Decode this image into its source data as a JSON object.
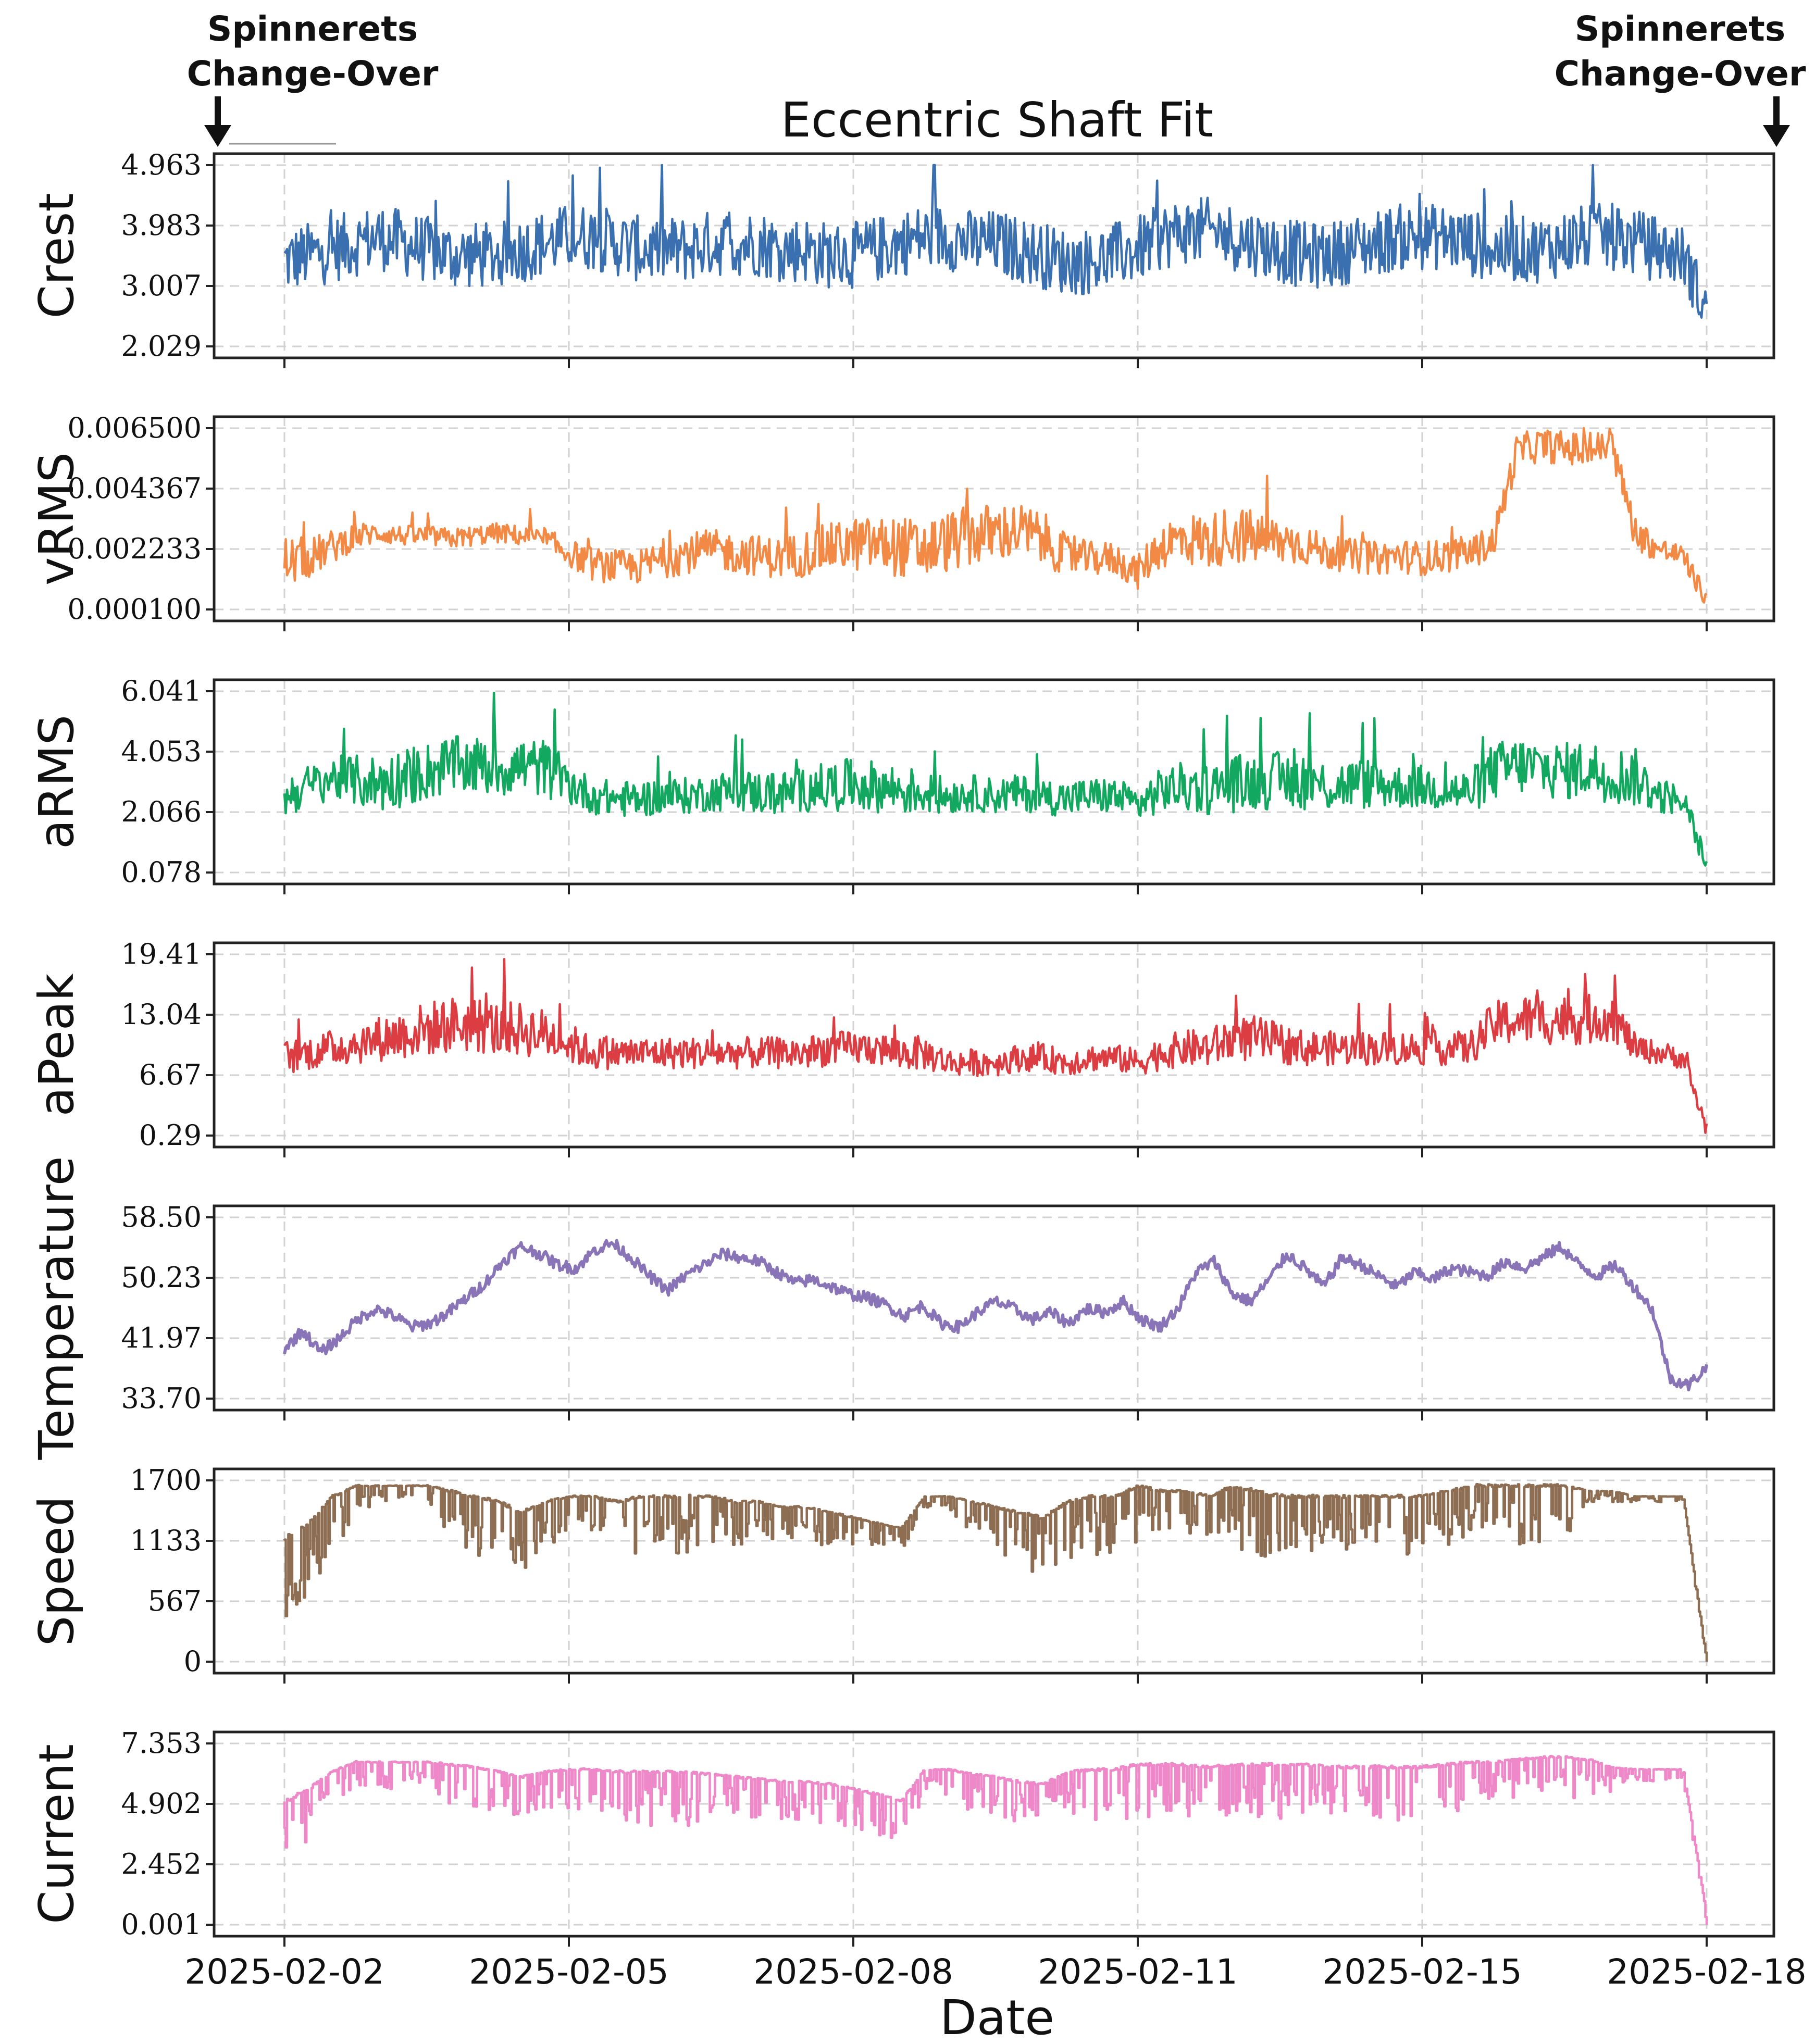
{
  "annotations": {
    "left": {
      "line1": "Spinnerets",
      "line2": "Change-Over"
    },
    "right": {
      "line1": "Spinnerets",
      "line2": "Change-Over"
    }
  },
  "chart_data": {
    "type": "line",
    "title": "Eccentric Shaft Fit",
    "xlabel": "Date",
    "x_ticks": [
      "2025-02-02",
      "2025-02-05",
      "2025-02-08",
      "2025-02-11",
      "2025-02-15",
      "2025-02-18"
    ],
    "grid": true,
    "panels": [
      {
        "name": "Crest",
        "ylabel": "Crest",
        "color": "#3a6fb0",
        "yticks": [
          "4.963",
          "3.983",
          "3.007",
          "2.029"
        ],
        "ylim": [
          2.029,
          4.963
        ],
        "values": [
          3.4,
          3.5,
          3.6,
          3.7,
          3.8,
          3.7,
          3.6,
          3.5,
          3.5,
          3.5,
          3.6,
          3.7,
          3.8,
          3.8,
          3.7,
          3.6,
          3.6,
          3.6,
          3.7,
          3.7,
          3.7,
          3.6,
          3.6,
          3.5,
          3.5,
          3.6,
          3.7,
          3.8,
          3.8,
          3.7,
          3.7,
          3.6,
          3.5,
          3.4,
          3.4,
          3.5,
          3.6,
          3.8,
          3.9,
          3.9,
          3.8,
          3.7,
          3.6,
          3.5,
          3.5,
          3.6,
          3.7,
          3.8,
          3.8,
          3.8,
          3.7,
          3.6,
          3.6,
          3.6,
          3.7,
          3.8,
          3.8,
          3.7,
          3.6,
          3.5,
          2.6
        ],
        "band": [
          0.45,
          0.45,
          0.45,
          0.45,
          0.45,
          0.45,
          0.45,
          0.45,
          0.45,
          0.45,
          0.45,
          0.45,
          0.45,
          0.45,
          0.45,
          0.45,
          0.45,
          0.45,
          0.45,
          0.45,
          0.45,
          0.45,
          0.45,
          0.45,
          0.45,
          0.45,
          0.45,
          0.45,
          0.45,
          0.45,
          0.45,
          0.45,
          0.45,
          0.45,
          0.45,
          0.45,
          0.45,
          0.45,
          0.45,
          0.45,
          0.45,
          0.45,
          0.45,
          0.45,
          0.45,
          0.45,
          0.45,
          0.45,
          0.45,
          0.45,
          0.45,
          0.45,
          0.45,
          0.45,
          0.45,
          0.45,
          0.45,
          0.45,
          0.45,
          0.4,
          0.4
        ]
      },
      {
        "name": "vRMS",
        "ylabel": "vRMS",
        "color": "#f28a45",
        "yticks": [
          "0.006500",
          "0.004367",
          "0.002233",
          "0.000100"
        ],
        "ylim": [
          0.0001,
          0.0065
        ],
        "values": [
          0.0018,
          0.0019,
          0.0023,
          0.0027,
          0.0028,
          0.0027,
          0.0027,
          0.0026,
          0.0027,
          0.0028,
          0.0027,
          0.0025,
          0.0021,
          0.0017,
          0.0016,
          0.0016,
          0.0019,
          0.0021,
          0.0022,
          0.0021,
          0.002,
          0.0019,
          0.0021,
          0.0023,
          0.0024,
          0.0024,
          0.0023,
          0.0022,
          0.0025,
          0.0027,
          0.0028,
          0.0029,
          0.0026,
          0.002,
          0.0019,
          0.0019,
          0.0014,
          0.0024,
          0.0026,
          0.0025,
          0.0028,
          0.0026,
          0.0025,
          0.0024,
          0.0021,
          0.002,
          0.0019,
          0.002,
          0.0019,
          0.002,
          0.0021,
          0.0025,
          0.0057,
          0.0059,
          0.0058,
          0.0057,
          0.0059,
          0.0028,
          0.0022,
          0.002,
          0.0004
        ],
        "band": [
          0.0008,
          0.0006,
          0.0005,
          0.0004,
          0.0003,
          0.0003,
          0.0003,
          0.0003,
          0.0003,
          0.0003,
          0.0003,
          0.0004,
          0.0004,
          0.0005,
          0.0005,
          0.0005,
          0.0006,
          0.0006,
          0.0006,
          0.0006,
          0.0006,
          0.0006,
          0.0007,
          0.0007,
          0.0008,
          0.0008,
          0.0009,
          0.0009,
          0.0009,
          0.0009,
          0.0009,
          0.0008,
          0.0008,
          0.0006,
          0.0005,
          0.0005,
          0.0005,
          0.0007,
          0.0008,
          0.0008,
          0.0009,
          0.0008,
          0.0007,
          0.0006,
          0.0005,
          0.0005,
          0.0005,
          0.0005,
          0.0005,
          0.0005,
          0.0005,
          0.0005,
          0.0005,
          0.0005,
          0.0005,
          0.0005,
          0.0005,
          0.0005,
          0.0004,
          0.0003,
          0.0003
        ]
      },
      {
        "name": "aRMS",
        "ylabel": "aRMS",
        "color": "#13a85f",
        "yticks": [
          "6.041",
          "4.053",
          "2.066",
          "0.078"
        ],
        "ylim": [
          0.078,
          6.041
        ],
        "values": [
          2.6,
          2.9,
          3.2,
          3.1,
          3.0,
          3.2,
          3.4,
          3.6,
          3.6,
          3.5,
          3.6,
          3.5,
          3.0,
          2.6,
          2.5,
          2.5,
          2.6,
          2.6,
          2.7,
          2.8,
          2.7,
          2.7,
          2.8,
          2.9,
          3.0,
          2.9,
          2.8,
          2.7,
          2.6,
          2.7,
          2.6,
          2.7,
          2.6,
          2.5,
          2.6,
          2.6,
          2.3,
          2.8,
          2.9,
          2.8,
          3.0,
          3.1,
          3.1,
          3.1,
          2.9,
          3.0,
          3.0,
          2.9,
          2.9,
          2.8,
          2.7,
          3.4,
          3.6,
          3.5,
          3.4,
          3.5,
          3.3,
          3.2,
          2.6,
          2.5,
          0.3
        ],
        "band": [
          0.6,
          0.6,
          0.6,
          0.7,
          0.8,
          0.8,
          0.8,
          0.8,
          0.8,
          0.8,
          0.8,
          0.8,
          0.6,
          0.5,
          0.5,
          0.5,
          0.5,
          0.5,
          0.5,
          0.6,
          0.6,
          0.6,
          0.6,
          0.7,
          0.7,
          0.7,
          0.7,
          0.6,
          0.5,
          0.5,
          0.5,
          0.5,
          0.5,
          0.5,
          0.5,
          0.5,
          0.5,
          0.6,
          0.7,
          0.7,
          0.8,
          0.8,
          0.8,
          0.8,
          0.7,
          0.7,
          0.7,
          0.6,
          0.6,
          0.6,
          0.6,
          0.8,
          0.8,
          0.8,
          0.8,
          0.8,
          0.8,
          0.8,
          0.5,
          0.4,
          0.3
        ]
      },
      {
        "name": "aPeak",
        "ylabel": "aPeak",
        "color": "#dc3d42",
        "yticks": [
          "19.41",
          "13.04",
          "6.67",
          "0.29"
        ],
        "ylim": [
          0.29,
          19.41
        ],
        "values": [
          8.5,
          9.0,
          9.5,
          10.0,
          10.5,
          11.0,
          11.5,
          12.0,
          12.0,
          11.5,
          11.5,
          11.0,
          10.0,
          9.0,
          9.0,
          9.0,
          9.0,
          9.0,
          9.0,
          9.0,
          9.0,
          9.0,
          9.0,
          9.5,
          9.5,
          9.5,
          9.0,
          9.0,
          8.0,
          8.0,
          8.0,
          8.5,
          8.5,
          8.0,
          8.5,
          8.5,
          8.0,
          9.0,
          9.5,
          9.5,
          10.5,
          10.5,
          10.0,
          9.5,
          9.5,
          9.5,
          9.5,
          9.5,
          9.5,
          9.5,
          9.5,
          12.0,
          12.5,
          12.5,
          12.5,
          12.5,
          13.0,
          9.5,
          9.0,
          8.5,
          1.0
        ],
        "band": [
          1.5,
          1.5,
          1.6,
          1.8,
          2.0,
          2.2,
          2.4,
          2.5,
          2.5,
          2.4,
          2.4,
          2.2,
          1.8,
          1.5,
          1.4,
          1.4,
          1.4,
          1.4,
          1.4,
          1.4,
          1.4,
          1.4,
          1.5,
          1.5,
          1.5,
          1.5,
          1.5,
          1.5,
          1.2,
          1.2,
          1.2,
          1.2,
          1.2,
          1.2,
          1.2,
          1.2,
          1.2,
          1.5,
          1.6,
          1.7,
          2.0,
          2.0,
          1.8,
          1.6,
          1.5,
          1.5,
          1.5,
          1.5,
          1.5,
          1.5,
          1.5,
          2.0,
          2.2,
          2.2,
          2.2,
          2.2,
          2.2,
          1.2,
          1.0,
          1.0,
          0.8
        ]
      },
      {
        "name": "Temperature",
        "ylabel": "Temperature",
        "color": "#8a74b8",
        "yticks": [
          "58.50",
          "50.23",
          "41.97",
          "33.70"
        ],
        "ylim": [
          33.7,
          58.5
        ],
        "values": [
          40.5,
          43.0,
          40.0,
          42.0,
          44.5,
          46.0,
          45.0,
          43.5,
          44.0,
          45.5,
          47.5,
          49.5,
          52.5,
          54.5,
          53.5,
          52.0,
          51.5,
          54.0,
          55.0,
          53.0,
          50.5,
          48.5,
          50.5,
          52.0,
          53.5,
          53.0,
          52.5,
          51.0,
          49.5,
          50.0,
          49.0,
          48.0,
          47.5,
          46.5,
          45.0,
          46.5,
          44.0,
          43.5,
          45.5,
          47.0,
          46.0,
          44.5,
          45.5,
          44.0,
          46.0,
          45.5,
          47.0,
          44.5,
          43.5,
          46.0,
          51.0,
          52.5,
          48.0,
          47.0,
          50.0,
          53.5,
          51.5,
          49.0,
          53.0,
          52.0,
          50.5,
          49.0,
          51.0,
          50.0,
          51.5,
          51.0,
          50.5,
          52.5,
          51.5,
          53.0,
          54.5,
          52.0,
          50.5,
          52.0,
          49.0,
          46.0,
          36.5,
          35.5,
          38.0
        ],
        "band": [
          1.0,
          1.0,
          1.0,
          1.0,
          1.0,
          1.0,
          1.0,
          1.0,
          1.0,
          1.0,
          1.0,
          1.0,
          1.0,
          1.0,
          1.0,
          1.0,
          1.0,
          1.0,
          1.0,
          1.0,
          1.0,
          1.0,
          1.0,
          1.0,
          1.0,
          1.0,
          1.0,
          1.0,
          1.0,
          1.0,
          1.0,
          1.0,
          1.0,
          1.0,
          1.0,
          1.0,
          1.0,
          1.0,
          1.0,
          1.0,
          1.0,
          1.0,
          1.0,
          1.0,
          1.0,
          1.0,
          1.0,
          1.0,
          1.0,
          1.0,
          1.0,
          1.0,
          1.0,
          1.0,
          1.0,
          1.0,
          1.0,
          1.0,
          1.0,
          1.0,
          1.0,
          1.0,
          1.0,
          1.0,
          1.0,
          1.0,
          1.0,
          1.0,
          1.0,
          1.0,
          1.0,
          1.0,
          1.0,
          1.0,
          1.0,
          1.0,
          1.0,
          1.0,
          1.0
        ]
      },
      {
        "name": "Speed",
        "ylabel": "Speed",
        "color": "#8e6e53",
        "yticks": [
          "1700",
          "1133",
          "567",
          "0"
        ],
        "ylim": [
          0,
          1700
        ],
        "values": [
          1150,
          1300,
          1550,
          1650,
          1650,
          1650,
          1650,
          1600,
          1550,
          1500,
          1400,
          1500,
          1550,
          1550,
          1500,
          1550,
          1550,
          1550,
          1550,
          1500,
          1500,
          1450,
          1450,
          1400,
          1350,
          1300,
          1250,
          1550,
          1550,
          1500,
          1450,
          1400,
          1350,
          1500,
          1550,
          1550,
          1650,
          1600,
          1600,
          1550,
          1650,
          1600,
          1550,
          1550,
          1550,
          1550,
          1550,
          1550,
          1550,
          1600,
          1650,
          1650,
          1650,
          1650,
          1650,
          1600,
          1600,
          1550,
          1550,
          1550,
          0
        ],
        "band": [
          150,
          120,
          100,
          50,
          30,
          30,
          30,
          80,
          100,
          100,
          100,
          80,
          60,
          60,
          100,
          100,
          100,
          100,
          80,
          80,
          60,
          60,
          60,
          60,
          60,
          40,
          40,
          20,
          20,
          60,
          80,
          100,
          100,
          100,
          100,
          100,
          100,
          80,
          80,
          80,
          100,
          120,
          120,
          100,
          100,
          100,
          100,
          100,
          100,
          100,
          100,
          100,
          100,
          100,
          100,
          20,
          20,
          10,
          10,
          10,
          10
        ]
      },
      {
        "name": "Current",
        "ylabel": "Current",
        "color": "#ee88c8",
        "yticks": [
          "7.353",
          "4.902",
          "2.452",
          "0.001"
        ],
        "ylim": [
          0.001,
          7.353
        ],
        "values": [
          5.0,
          5.5,
          6.2,
          6.6,
          6.6,
          6.6,
          6.6,
          6.5,
          6.4,
          6.2,
          6.0,
          6.2,
          6.3,
          6.3,
          6.2,
          6.2,
          6.2,
          6.2,
          6.1,
          6.0,
          5.9,
          5.8,
          5.8,
          5.7,
          5.5,
          5.3,
          5.0,
          6.3,
          6.3,
          6.1,
          6.0,
          5.8,
          5.7,
          6.2,
          6.3,
          6.3,
          6.5,
          6.5,
          6.5,
          6.4,
          6.5,
          6.5,
          6.5,
          6.5,
          6.4,
          6.4,
          6.4,
          6.4,
          6.4,
          6.5,
          6.6,
          6.6,
          6.7,
          6.8,
          6.8,
          6.7,
          6.4,
          6.3,
          6.3,
          6.3,
          0.3
        ],
        "band": [
          0.6,
          0.4,
          0.3,
          0.2,
          0.2,
          0.2,
          0.2,
          0.3,
          0.3,
          0.3,
          0.3,
          0.3,
          0.3,
          0.3,
          0.4,
          0.4,
          0.4,
          0.4,
          0.3,
          0.3,
          0.3,
          0.3,
          0.3,
          0.3,
          0.3,
          0.3,
          0.3,
          0.2,
          0.2,
          0.3,
          0.3,
          0.3,
          0.3,
          0.3,
          0.4,
          0.4,
          0.4,
          0.4,
          0.4,
          0.3,
          0.4,
          0.4,
          0.4,
          0.4,
          0.4,
          0.4,
          0.4,
          0.4,
          0.4,
          0.4,
          0.3,
          0.3,
          0.3,
          0.3,
          0.3,
          0.3,
          0.2,
          0.1,
          0.1,
          0.1,
          0.1
        ]
      }
    ]
  }
}
